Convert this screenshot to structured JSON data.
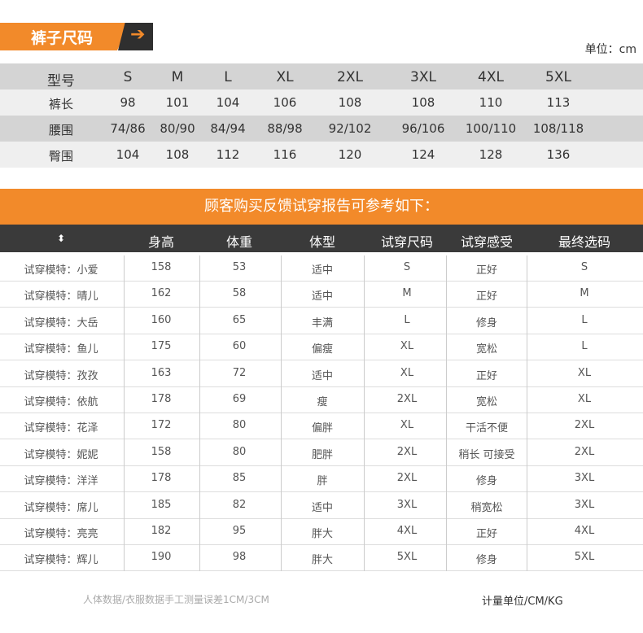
{
  "title": "裤子尺码",
  "arrow_icon": "arrow-right-icon",
  "unit": "单位：cm",
  "size_table": {
    "header": [
      "型号",
      "S",
      "M",
      "L",
      "XL",
      "2XL",
      "3XL",
      "4XL",
      "5XL"
    ],
    "rows": [
      [
        "裤长",
        "98",
        "101",
        "104",
        "106",
        "108",
        "108",
        "110",
        "113"
      ],
      [
        "腰围",
        "74/86",
        "80/90",
        "84/94",
        "88/98",
        "92/102",
        "96/106",
        "100/110",
        "108/118"
      ],
      [
        "臀围",
        "104",
        "108",
        "112",
        "116",
        "120",
        "124",
        "128",
        "136"
      ]
    ]
  },
  "banner": "顾客购买反馈试穿报告可参考如下：",
  "feedback": {
    "sort_icon": "sort-updown-icon",
    "header": [
      "",
      "身高",
      "体重",
      "体型",
      "试穿尺码",
      "试穿感受",
      "最终选码"
    ],
    "rows": [
      [
        "试穿模特：小爱",
        "158",
        "53",
        "适中",
        "S",
        "正好",
        "S"
      ],
      [
        "试穿模特：晴儿",
        "162",
        "58",
        "适中",
        "M",
        "正好",
        "M"
      ],
      [
        "试穿模特：大岳",
        "160",
        "65",
        "丰满",
        "L",
        "修身",
        "L"
      ],
      [
        "试穿模特：鱼儿",
        "175",
        "60",
        "偏瘦",
        "XL",
        "宽松",
        "L"
      ],
      [
        "试穿模特：孜孜",
        "163",
        "72",
        "适中",
        "XL",
        "正好",
        "XL"
      ],
      [
        "试穿模特：依航",
        "178",
        "69",
        "瘦",
        "2XL",
        "宽松",
        "XL"
      ],
      [
        "试穿模特：花泽",
        "172",
        "80",
        "偏胖",
        "XL",
        "干活不便",
        "2XL"
      ],
      [
        "试穿模特：妮妮",
        "158",
        "80",
        "肥胖",
        "2XL",
        "稍长 可接受",
        "2XL"
      ],
      [
        "试穿模特：洋洋",
        "178",
        "85",
        "胖",
        "2XL",
        "修身",
        "3XL"
      ],
      [
        "试穿模特：席儿",
        "185",
        "82",
        "适中",
        "3XL",
        "稍宽松",
        "3XL"
      ],
      [
        "试穿模特：亮亮",
        "182",
        "95",
        "胖大",
        "4XL",
        "正好",
        "4XL"
      ],
      [
        "试穿模特：辉儿",
        "190",
        "98",
        "胖大",
        "5XL",
        "修身",
        "5XL"
      ]
    ]
  },
  "footer_note": "人体数据/衣服数据手工测量误差1CM/3CM",
  "footer_unit": "计量单位/CM/KG",
  "colors": {
    "accent": "#f28a2a",
    "dark": "#3a3a3a"
  }
}
